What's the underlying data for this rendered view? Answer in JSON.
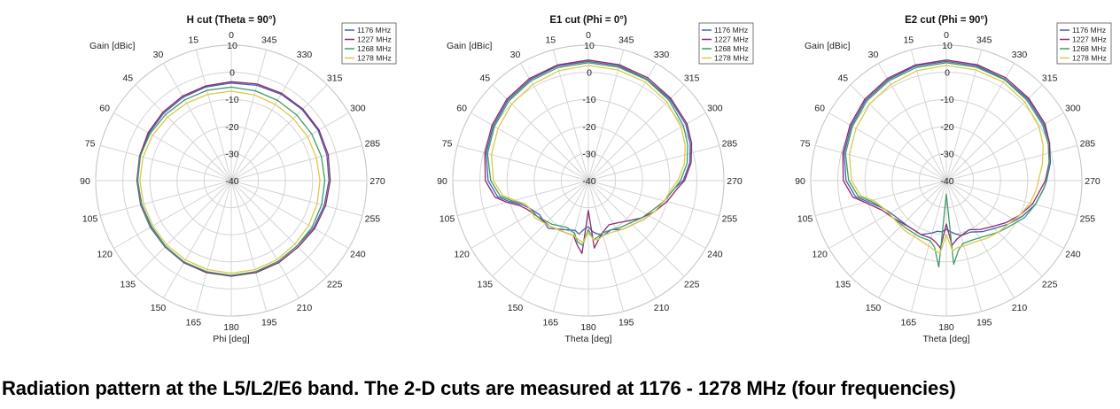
{
  "caption": "Radiation pattern at the L5/L2/E6 band. The 2-D cuts are measured at 1176 - 1278 MHz (four frequencies)",
  "colors": {
    "1176 MHz": "#4a5fa8",
    "1227 MHz": "#8a2a6e",
    "1268 MHz": "#3e9a6a",
    "1278 MHz": "#dcc84a"
  },
  "chart_data": [
    {
      "type": "polar-line",
      "title": "H cut (Theta = 90°)",
      "angle_label": "Phi [deg]",
      "radial_label": "Gain [dBic]",
      "radial_range": [
        -40,
        10
      ],
      "radial_ticks": [
        10,
        0,
        -10,
        -20,
        -30,
        -40
      ],
      "angle_ticks": [
        0,
        15,
        30,
        45,
        60,
        75,
        90,
        105,
        120,
        135,
        150,
        165,
        180,
        195,
        210,
        225,
        240,
        255,
        270,
        285,
        300,
        315,
        330,
        345
      ],
      "legend": [
        "1176 MHz",
        "1227 MHz",
        "1268 MHz",
        "1278 MHz"
      ],
      "grid": true,
      "legend_position": "top-right",
      "series": [
        {
          "name": "1176 MHz",
          "angles": [
            0,
            15,
            30,
            45,
            60,
            75,
            90,
            105,
            120,
            135,
            150,
            165,
            180,
            195,
            210,
            225,
            240,
            255,
            270,
            285,
            300,
            315,
            330,
            345,
            360
          ],
          "values": [
            -4,
            -4.2,
            -4.5,
            -4.8,
            -5,
            -5.3,
            -5.5,
            -5.8,
            -6,
            -5.7,
            -5.3,
            -5,
            -5,
            -5.2,
            -5.5,
            -5.8,
            -5,
            -4.5,
            -4,
            -3.5,
            -3,
            -3,
            -3.2,
            -3.6,
            -4
          ]
        },
        {
          "name": "1227 MHz",
          "angles": [
            0,
            15,
            30,
            45,
            60,
            75,
            90,
            105,
            120,
            135,
            150,
            165,
            180,
            195,
            210,
            225,
            240,
            255,
            270,
            285,
            300,
            315,
            330,
            345,
            360
          ],
          "values": [
            -3.5,
            -3.8,
            -4,
            -4.3,
            -4.6,
            -5,
            -5.2,
            -5.4,
            -5.5,
            -5.4,
            -5,
            -4.8,
            -4.7,
            -4.8,
            -5,
            -5.2,
            -4.5,
            -4,
            -3.5,
            -3,
            -2.6,
            -2.6,
            -2.8,
            -3.1,
            -3.5
          ]
        },
        {
          "name": "1268 MHz",
          "angles": [
            0,
            15,
            30,
            45,
            60,
            75,
            90,
            105,
            120,
            135,
            150,
            165,
            180,
            195,
            210,
            225,
            240,
            255,
            270,
            285,
            300,
            315,
            330,
            345,
            360
          ],
          "values": [
            -5.5,
            -5.5,
            -5.6,
            -5.6,
            -5.4,
            -5.2,
            -5.4,
            -5.6,
            -5.6,
            -5.5,
            -5.3,
            -5.2,
            -5,
            -5.2,
            -5.5,
            -5.8,
            -5.6,
            -5.5,
            -5.5,
            -5.6,
            -5.7,
            -5.8,
            -5.8,
            -5.7,
            -5.5
          ]
        },
        {
          "name": "1278 MHz",
          "angles": [
            0,
            15,
            30,
            45,
            60,
            75,
            90,
            105,
            120,
            135,
            150,
            165,
            180,
            195,
            210,
            225,
            240,
            255,
            270,
            285,
            300,
            315,
            330,
            345,
            360
          ],
          "values": [
            -7,
            -7,
            -7,
            -6.8,
            -6.5,
            -6.3,
            -6.3,
            -6.5,
            -6.6,
            -6.4,
            -6.2,
            -6,
            -5.8,
            -6,
            -6.3,
            -6.8,
            -7,
            -7.2,
            -7.3,
            -7.5,
            -7.5,
            -7.6,
            -7.5,
            -7.2,
            -7
          ]
        }
      ]
    },
    {
      "type": "polar-line",
      "title": "E1 cut (Phi = 0°)",
      "angle_label": "Theta [deg]",
      "radial_label": "Gain [dBic]",
      "radial_range": [
        -40,
        10
      ],
      "radial_ticks": [
        10,
        0,
        -10,
        -20,
        -30,
        -40
      ],
      "angle_ticks": [
        0,
        15,
        30,
        45,
        60,
        75,
        90,
        105,
        120,
        135,
        150,
        165,
        180,
        195,
        210,
        225,
        240,
        255,
        270,
        285,
        300,
        315,
        330,
        345
      ],
      "legend": [
        "1176 MHz",
        "1227 MHz",
        "1268 MHz",
        "1278 MHz"
      ],
      "grid": true,
      "legend_position": "top-right",
      "series": [
        {
          "name": "1176 MHz",
          "angles": [
            0,
            15,
            30,
            45,
            60,
            75,
            90,
            100,
            105,
            110,
            115,
            125,
            140,
            155,
            165,
            170,
            175,
            180,
            185,
            190,
            195,
            205,
            215,
            225,
            235,
            245,
            255,
            265,
            270,
            280,
            290,
            300,
            315,
            330,
            345,
            360
          ],
          "values": [
            4,
            3.8,
            3,
            2,
            0.5,
            -1,
            -3,
            -6,
            -10,
            -14,
            -16,
            -18,
            -17,
            -20,
            -21,
            -20,
            -22,
            -23,
            -21,
            -20,
            -19,
            -20,
            -18,
            -17,
            -15,
            -13,
            -11,
            -8,
            -5,
            -2,
            0,
            1.5,
            2.5,
            3.2,
            3.8,
            4
          ]
        },
        {
          "name": "1227 MHz",
          "angles": [
            0,
            15,
            30,
            45,
            60,
            75,
            90,
            100,
            105,
            110,
            115,
            125,
            140,
            155,
            165,
            170,
            175,
            180,
            185,
            190,
            195,
            205,
            215,
            225,
            235,
            245,
            255,
            265,
            270,
            280,
            290,
            300,
            315,
            330,
            345,
            360
          ],
          "values": [
            4.5,
            4.2,
            3.5,
            2.5,
            1,
            -0.5,
            -2,
            -5,
            -9,
            -13,
            -15,
            -17,
            -18,
            -19,
            -19,
            -16,
            -13,
            -29,
            -15,
            -18,
            -20,
            -22,
            -21,
            -19,
            -16,
            -13,
            -10,
            -7,
            -4.5,
            -1.5,
            0.5,
            2,
            3,
            3.8,
            4.3,
            4.5
          ]
        },
        {
          "name": "1268 MHz",
          "angles": [
            0,
            15,
            30,
            45,
            60,
            75,
            90,
            100,
            105,
            110,
            115,
            125,
            140,
            155,
            165,
            170,
            175,
            180,
            185,
            190,
            195,
            205,
            215,
            225,
            235,
            245,
            255,
            265,
            270,
            280,
            290,
            300,
            315,
            330,
            345,
            360
          ],
          "values": [
            3.5,
            3.2,
            2.5,
            1.5,
            0,
            -1.5,
            -4,
            -7,
            -11,
            -15,
            -16,
            -17,
            -19,
            -21,
            -20,
            -17,
            -16,
            -22,
            -18,
            -19,
            -20,
            -20,
            -19,
            -18,
            -16,
            -14,
            -11,
            -8,
            -6,
            -3,
            -1,
            0.5,
            2,
            3,
            3.3,
            3.5
          ]
        },
        {
          "name": "1278 MHz",
          "angles": [
            0,
            15,
            30,
            45,
            60,
            75,
            90,
            100,
            105,
            110,
            115,
            125,
            140,
            155,
            165,
            170,
            175,
            180,
            185,
            190,
            195,
            205,
            215,
            225,
            235,
            245,
            255,
            265,
            270,
            280,
            290,
            300,
            315,
            330,
            345,
            360
          ],
          "values": [
            2.5,
            2,
            1,
            0,
            -1.5,
            -3,
            -5,
            -8,
            -12,
            -15,
            -16,
            -16,
            -18,
            -19,
            -19,
            -18,
            -17,
            -21,
            -18,
            -18,
            -19,
            -19,
            -18,
            -17,
            -15,
            -13,
            -11,
            -9,
            -7,
            -4,
            -2,
            -0.5,
            1,
            2,
            2.3,
            2.5
          ]
        }
      ]
    },
    {
      "type": "polar-line",
      "title": "E2 cut (Phi = 90°)",
      "angle_label": "Theta [deg]",
      "radial_label": "Gain [dBic]",
      "radial_range": [
        -40,
        10
      ],
      "radial_ticks": [
        10,
        0,
        -10,
        -20,
        -30,
        -40
      ],
      "angle_ticks": [
        0,
        15,
        30,
        45,
        60,
        75,
        90,
        105,
        120,
        135,
        150,
        165,
        180,
        195,
        210,
        225,
        240,
        255,
        270,
        285,
        300,
        315,
        330,
        345
      ],
      "legend": [
        "1176 MHz",
        "1227 MHz",
        "1268 MHz",
        "1278 MHz"
      ],
      "grid": true,
      "legend_position": "top-right",
      "series": [
        {
          "name": "1176 MHz",
          "angles": [
            0,
            15,
            30,
            45,
            60,
            75,
            90,
            100,
            105,
            115,
            125,
            140,
            155,
            165,
            170,
            175,
            180,
            185,
            190,
            195,
            205,
            215,
            225,
            235,
            245,
            255,
            265,
            270,
            280,
            290,
            300,
            315,
            330,
            345,
            360
          ],
          "values": [
            4,
            3.8,
            3,
            2,
            0.5,
            -1,
            -3,
            -6,
            -10,
            -15,
            -17,
            -18,
            -18,
            -20,
            -21,
            -21,
            -22,
            -21,
            -20,
            -19,
            -19,
            -17,
            -15,
            -12,
            -9,
            -6,
            -4,
            -3,
            -1,
            0.5,
            1.5,
            2.5,
            3.2,
            3.8,
            4
          ]
        },
        {
          "name": "1227 MHz",
          "angles": [
            0,
            15,
            30,
            45,
            60,
            75,
            90,
            100,
            105,
            115,
            125,
            140,
            155,
            165,
            170,
            175,
            180,
            185,
            190,
            195,
            205,
            215,
            225,
            235,
            245,
            255,
            265,
            270,
            280,
            290,
            300,
            315,
            330,
            345,
            360
          ],
          "values": [
            4.5,
            4.2,
            3.5,
            2.5,
            1,
            -0.5,
            -2,
            -5,
            -9,
            -14,
            -16,
            -18,
            -18,
            -18,
            -17,
            -15,
            -24,
            -16,
            -18,
            -19,
            -20,
            -18,
            -16,
            -13,
            -10,
            -7,
            -5,
            -3.5,
            -1.5,
            0.5,
            2,
            3,
            3.8,
            4.3,
            4.5
          ]
        },
        {
          "name": "1268 MHz",
          "angles": [
            0,
            15,
            30,
            45,
            60,
            75,
            90,
            100,
            105,
            115,
            125,
            140,
            155,
            165,
            170,
            175,
            180,
            185,
            190,
            195,
            205,
            215,
            225,
            235,
            245,
            255,
            265,
            270,
            280,
            290,
            300,
            315,
            330,
            345,
            360
          ],
          "values": [
            3.5,
            3.2,
            2.5,
            1.5,
            0,
            -1.5,
            -4,
            -7,
            -11,
            -15,
            -16,
            -17,
            -17,
            -17,
            -15,
            -8,
            -35,
            -9,
            -14,
            -16,
            -16,
            -15,
            -13,
            -11,
            -8,
            -6,
            -4,
            -3,
            -1.5,
            0,
            1,
            2,
            3,
            3.3,
            3.5
          ]
        },
        {
          "name": "1278 MHz",
          "angles": [
            0,
            15,
            30,
            45,
            60,
            75,
            90,
            100,
            105,
            115,
            125,
            140,
            155,
            165,
            170,
            175,
            180,
            185,
            190,
            195,
            205,
            215,
            225,
            235,
            245,
            255,
            265,
            270,
            280,
            290,
            300,
            315,
            330,
            345,
            360
          ],
          "values": [
            2.5,
            2,
            1,
            0,
            -1.5,
            -3,
            -5,
            -8,
            -12,
            -15,
            -16,
            -16,
            -16,
            -15,
            -14,
            -13,
            -20,
            -14,
            -15,
            -15,
            -15,
            -14,
            -13,
            -12,
            -10,
            -8,
            -6.5,
            -6,
            -4,
            -2,
            -0.5,
            1,
            2,
            2.3,
            2.5
          ]
        }
      ]
    }
  ]
}
